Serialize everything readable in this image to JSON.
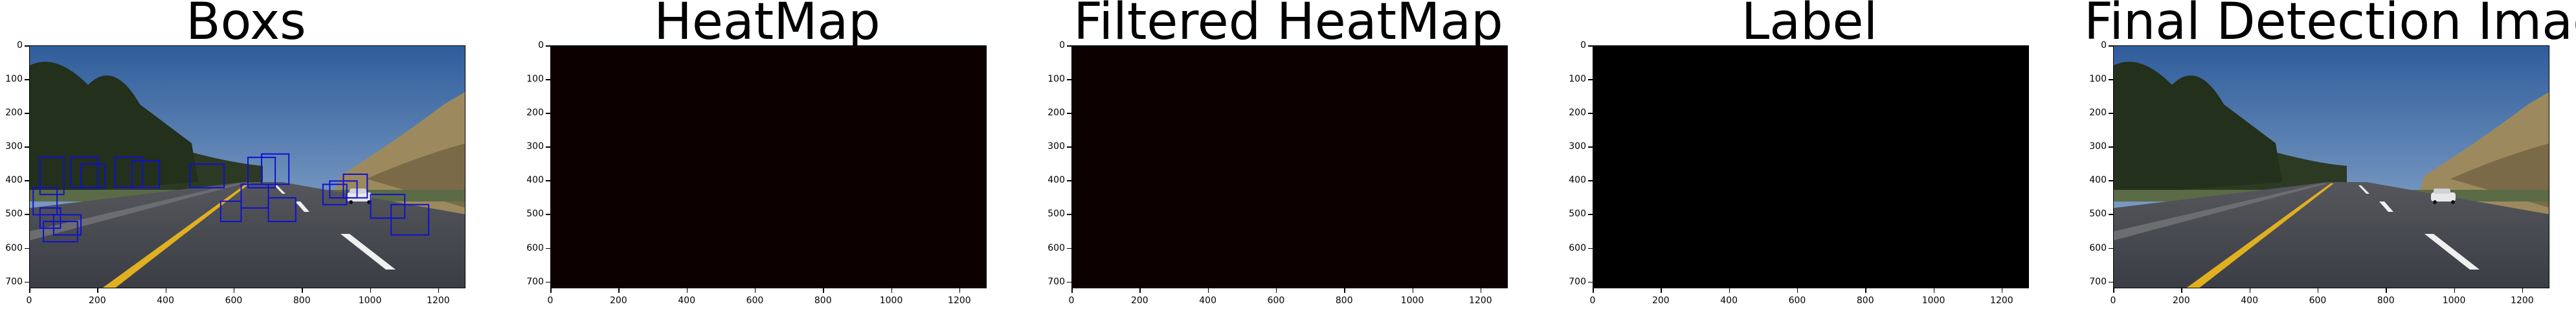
{
  "panels": [
    {
      "key": "boxs",
      "title": "Boxs",
      "content": "road-image",
      "with_boxes": true
    },
    {
      "key": "heatmap",
      "title": "HeatMap",
      "content": "solid",
      "fill": "#0d0000"
    },
    {
      "key": "filtered",
      "title": "Filtered HeatMap",
      "content": "solid",
      "fill": "#0d0000"
    },
    {
      "key": "label",
      "title": "Label",
      "content": "solid",
      "fill": "#000000"
    },
    {
      "key": "final",
      "title": "Final Detection Image",
      "content": "road-image",
      "with_boxes": false
    }
  ],
  "axes": {
    "x_ticks": [
      "0",
      "200",
      "400",
      "600",
      "800",
      "1000",
      "1200"
    ],
    "y_ticks": [
      "0",
      "100",
      "200",
      "300",
      "400",
      "500",
      "600",
      "700"
    ],
    "x_range": [
      0,
      1280
    ],
    "y_range": [
      0,
      720
    ]
  },
  "colors": {
    "box": "#1010d0",
    "sky": "#5a7fb0",
    "road": "#3a3d44",
    "lane_yellow": "#e0b020",
    "lane_white": "#f0f0f0"
  }
}
